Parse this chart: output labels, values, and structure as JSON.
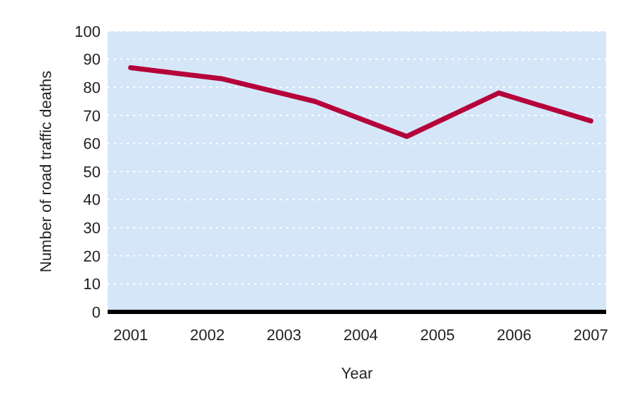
{
  "chart_data": {
    "type": "line",
    "xlabel": "Year",
    "ylabel": "Number of road traffic deaths",
    "x": [
      2001,
      2002.2,
      2003.4,
      2004.6,
      2005.8,
      2007
    ],
    "series": [
      {
        "color": "#b5003a",
        "values": [
          87,
          83,
          75,
          62.5,
          78,
          68
        ]
      }
    ],
    "xlim": [
      2000.7,
      2007.2
    ],
    "xticks": [
      2001,
      2002,
      2003,
      2004,
      2005,
      2006,
      2007
    ],
    "ylim": [
      0,
      100
    ],
    "yticks": [
      0,
      10,
      20,
      30,
      40,
      50,
      60,
      70,
      80,
      90,
      100
    ],
    "grid": "y",
    "marker": "none",
    "line_style": "solid"
  }
}
